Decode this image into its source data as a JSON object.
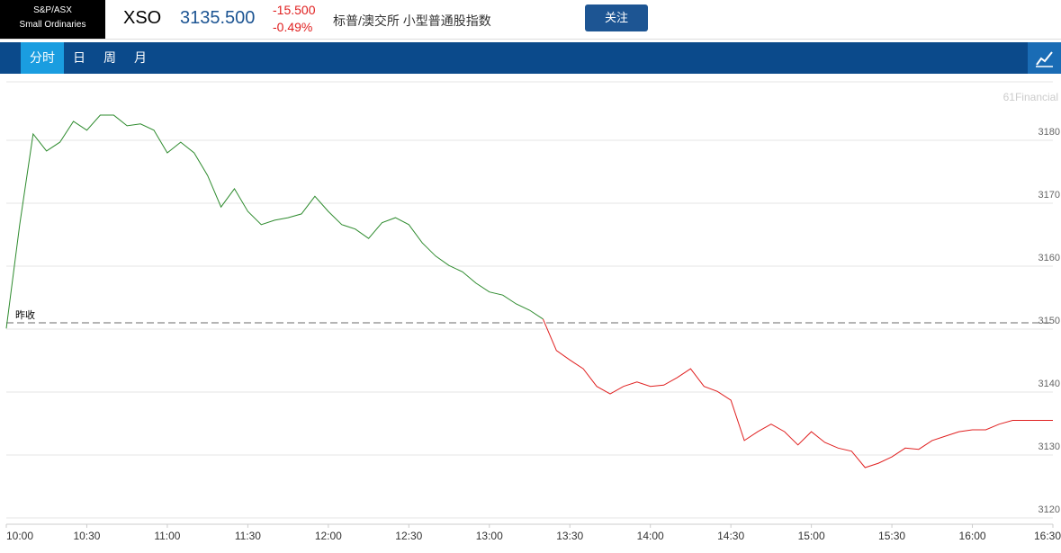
{
  "header": {
    "logo_line1": "S&P/ASX",
    "logo_line2": "Small Ordinaries",
    "symbol": "XSO",
    "price": "3135.500",
    "change": "-15.500",
    "change_pct": "-0.49%",
    "name": "标普/澳交所 小型普通股指数",
    "follow_button": "关注"
  },
  "tabs": [
    "分时",
    "日",
    "周",
    "月"
  ],
  "chart_data": {
    "type": "line",
    "watermark": "61Financial",
    "prev_close_label": "昨收",
    "prev_close": 3151,
    "x": [
      "10:00",
      "10:05",
      "10:10",
      "10:15",
      "10:20",
      "10:25",
      "10:30",
      "10:35",
      "10:40",
      "10:45",
      "10:50",
      "10:55",
      "11:00",
      "11:05",
      "11:10",
      "11:15",
      "11:20",
      "11:25",
      "11:30",
      "11:35",
      "11:40",
      "11:45",
      "11:50",
      "11:55",
      "12:00",
      "12:05",
      "12:10",
      "12:15",
      "12:20",
      "12:25",
      "12:30",
      "12:35",
      "12:40",
      "12:45",
      "12:50",
      "12:55",
      "13:00",
      "13:05",
      "13:10",
      "13:15",
      "13:20",
      "13:25",
      "13:30",
      "13:35",
      "13:40",
      "13:45",
      "13:50",
      "13:55",
      "14:00",
      "14:05",
      "14:10",
      "14:15",
      "14:20",
      "14:25",
      "14:30",
      "14:35",
      "14:40",
      "14:45",
      "14:50",
      "14:55",
      "15:00",
      "15:05",
      "15:10",
      "15:15",
      "15:20",
      "15:25",
      "15:30",
      "15:35",
      "15:40",
      "15:45",
      "15:50",
      "15:55",
      "16:00",
      "16:05",
      "16:10",
      "16:15",
      "16:20",
      "16:25",
      "16:30"
    ],
    "series": [
      {
        "color": "#2e8b2e",
        "values": [
          3150.1,
          3166.6,
          3181,
          3178.3,
          3179.7,
          3183,
          3181.6,
          3184,
          3184,
          3182.3,
          3182.6,
          3181.6,
          3178,
          3179.7,
          3178,
          3174.4,
          3169.4,
          3172.3,
          3168.7,
          3166.6,
          3167.3,
          3167.7,
          3168.3,
          3171.1,
          3168.7,
          3166.6,
          3165.9,
          3164.4,
          3166.9,
          3167.7,
          3166.6,
          3163.7,
          3161.6,
          3160.1,
          3159.1,
          3157.3,
          3155.9,
          3155.4,
          3154,
          3153,
          3151.6,
          null,
          null,
          null,
          null,
          null,
          null,
          null,
          null,
          null,
          null,
          null,
          null,
          null,
          null,
          null,
          null,
          null,
          null,
          null,
          null,
          null,
          null,
          null,
          null,
          null,
          null,
          null,
          null,
          null,
          null,
          null,
          null,
          null,
          null,
          null,
          null,
          null,
          null
        ]
      },
      {
        "color": "#e02020",
        "values": [
          null,
          null,
          null,
          null,
          null,
          null,
          null,
          null,
          null,
          null,
          null,
          null,
          null,
          null,
          null,
          null,
          null,
          null,
          null,
          null,
          null,
          null,
          null,
          null,
          null,
          null,
          null,
          null,
          null,
          null,
          null,
          null,
          null,
          null,
          null,
          null,
          null,
          null,
          null,
          null,
          3151.6,
          3146.6,
          3145.1,
          3143.7,
          3140.9,
          3139.7,
          3140.9,
          3141.6,
          3140.9,
          3141.1,
          3142.3,
          3143.7,
          3140.9,
          3140.1,
          3138.7,
          3132.3,
          3133.7,
          3134.9,
          3133.7,
          3131.6,
          3133.7,
          3132,
          3131.1,
          3130.6,
          3128,
          3128.7,
          3129.7,
          3131.1,
          3130.9,
          3132.3,
          3133,
          3133.7,
          3134,
          3134,
          3134.9,
          3135.5,
          3135.5,
          3135.5,
          3135.5
        ]
      }
    ],
    "xlim": [
      "10:00",
      "16:30"
    ],
    "xticks": [
      "10:00",
      "10:30",
      "11:00",
      "11:30",
      "12:00",
      "12:30",
      "13:00",
      "13:30",
      "14:00",
      "14:30",
      "15:00",
      "15:30",
      "16:00",
      "16:30"
    ],
    "ylim": [
      3119,
      3189
    ],
    "yticks": [
      3120,
      3130,
      3140,
      3150,
      3160,
      3170,
      3180
    ],
    "grid": true
  }
}
